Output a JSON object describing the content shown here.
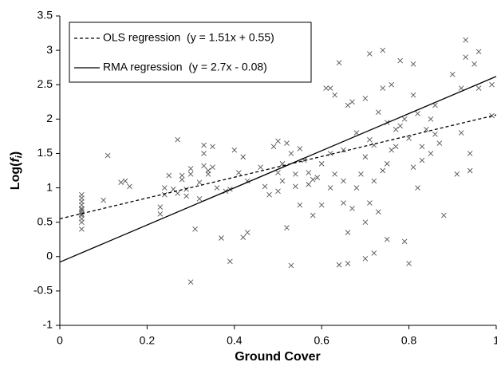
{
  "chart_data": {
    "type": "scatter",
    "x_label": "Ground Cover",
    "y_label": {
      "prefix": "Log(",
      "var": "f",
      "sub": "i",
      "suffix": ")"
    },
    "xlim": [
      0,
      1
    ],
    "xticks": [
      0,
      0.2,
      0.4,
      0.6,
      0.8,
      1
    ],
    "ylim": [
      -1,
      3.5
    ],
    "yticks": [
      -1,
      -0.5,
      0,
      0.5,
      1,
      1.5,
      2,
      2.5,
      3,
      3.5
    ],
    "points": {
      "color": "#555555",
      "x": [
        0.05,
        0.05,
        0.05,
        0.05,
        0.05,
        0.05,
        0.05,
        0.05,
        0.05,
        0.05,
        0.05,
        0.05,
        0.11,
        0.1,
        0.14,
        0.15,
        0.16,
        0.23,
        0.23,
        0.24,
        0.24,
        0.25,
        0.26,
        0.27,
        0.27,
        0.28,
        0.28,
        0.29,
        0.29,
        0.3,
        0.3,
        0.3,
        0.31,
        0.32,
        0.32,
        0.33,
        0.33,
        0.33,
        0.34,
        0.34,
        0.35,
        0.35,
        0.36,
        0.37,
        0.38,
        0.39,
        0.39,
        0.4,
        0.41,
        0.42,
        0.42,
        0.43,
        0.43,
        0.46,
        0.47,
        0.48,
        0.49,
        0.5,
        0.5,
        0.5,
        0.51,
        0.51,
        0.52,
        0.52,
        0.53,
        0.53,
        0.54,
        0.54,
        0.55,
        0.55,
        0.56,
        0.57,
        0.57,
        0.58,
        0.58,
        0.59,
        0.6,
        0.6,
        0.61,
        0.62,
        0.62,
        0.62,
        0.63,
        0.63,
        0.64,
        0.64,
        0.65,
        0.65,
        0.65,
        0.66,
        0.66,
        0.66,
        0.67,
        0.67,
        0.68,
        0.68,
        0.69,
        0.7,
        0.7,
        0.7,
        0.7,
        0.71,
        0.71,
        0.71,
        0.72,
        0.72,
        0.72,
        0.73,
        0.73,
        0.74,
        0.74,
        0.74,
        0.75,
        0.75,
        0.75,
        0.76,
        0.76,
        0.77,
        0.77,
        0.78,
        0.78,
        0.79,
        0.79,
        0.8,
        0.8,
        0.81,
        0.81,
        0.81,
        0.82,
        0.82,
        0.83,
        0.83,
        0.84,
        0.85,
        0.85,
        0.86,
        0.86,
        0.87,
        0.88,
        0.9,
        0.91,
        0.92,
        0.92,
        0.93,
        0.93,
        0.94,
        0.94,
        0.95,
        0.96,
        0.96,
        0.99,
        0.99
      ],
      "y": [
        0.4,
        0.5,
        0.55,
        0.6,
        0.65,
        0.7,
        0.75,
        0.8,
        0.9,
        0.85,
        0.62,
        0.68,
        1.47,
        0.82,
        1.08,
        1.1,
        1.02,
        0.62,
        0.72,
        0.9,
        1.0,
        1.18,
        0.98,
        1.7,
        0.92,
        1.12,
        1.18,
        0.88,
        0.98,
        1.2,
        1.28,
        -0.37,
        0.4,
        1.08,
        0.84,
        1.5,
        1.32,
        1.62,
        1.2,
        1.25,
        1.6,
        1.3,
        1.0,
        0.27,
        0.95,
        0.98,
        -0.07,
        1.55,
        1.22,
        1.45,
        0.28,
        0.35,
        1.1,
        1.3,
        1.02,
        0.9,
        1.6,
        1.68,
        1.22,
        0.95,
        1.1,
        1.35,
        1.65,
        0.42,
        1.5,
        -0.13,
        1.2,
        1.02,
        1.57,
        0.75,
        1.4,
        1.22,
        1.05,
        0.6,
        1.12,
        1.15,
        1.35,
        0.75,
        2.45,
        2.45,
        1.5,
        1.0,
        2.35,
        1.2,
        2.82,
        -0.12,
        1.1,
        1.55,
        0.78,
        2.2,
        -0.1,
        0.35,
        2.25,
        0.7,
        1.8,
        1.0,
        1.2,
        2.3,
        1.45,
        0.5,
        -0.03,
        2.95,
        1.7,
        0.78,
        0.05,
        1.62,
        1.1,
        2.1,
        0.65,
        3.0,
        2.45,
        1.25,
        1.95,
        1.35,
        0.25,
        1.55,
        2.5,
        1.85,
        1.6,
        1.9,
        2.85,
        0.22,
        2.0,
        1.72,
        -0.1,
        2.8,
        2.35,
        1.3,
        1.0,
        2.08,
        1.6,
        1.4,
        1.85,
        2.0,
        1.5,
        1.78,
        2.2,
        1.65,
        0.6,
        2.65,
        1.2,
        2.45,
        1.8,
        3.15,
        2.9,
        1.5,
        1.25,
        2.8,
        2.45,
        2.98,
        2.5,
        2.05
      ]
    },
    "series": [
      {
        "name": "OLS regression  (y = 1.51x + 0.55)",
        "color": "#000000",
        "style": "dashed",
        "x": [
          0,
          1
        ],
        "values": [
          0.55,
          2.06
        ]
      },
      {
        "name": "RMA regression  (y = 2.7x - 0.08)",
        "color": "#000000",
        "style": "solid",
        "x": [
          0,
          1
        ],
        "values": [
          -0.08,
          2.62
        ]
      }
    ],
    "legend": "top-left"
  }
}
